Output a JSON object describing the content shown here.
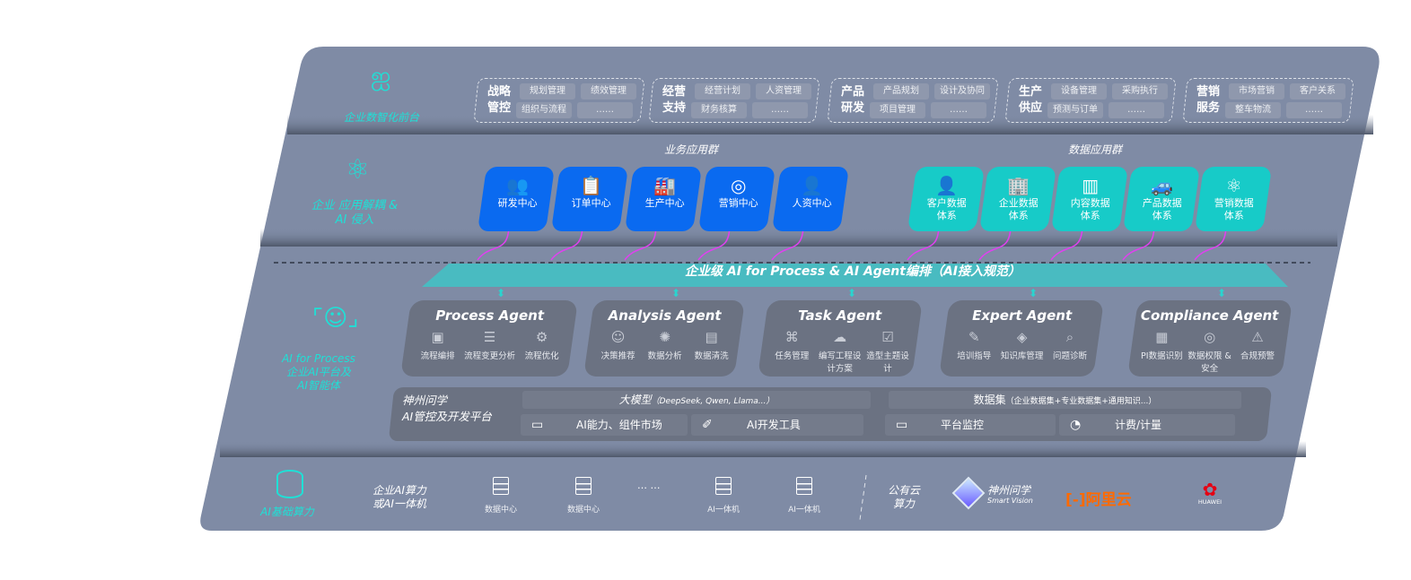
{
  "colors": {
    "panel": "#7f8ba5",
    "accent_cyan": "#1fe0d6",
    "biz_blue": "#0a6af0",
    "data_teal": "#17cbc8",
    "connector": "#e040f0",
    "aliyun": "#ff6a00",
    "huawei": "#e60012"
  },
  "front": {
    "label": "企业数智化前台",
    "icon": "brain-icon",
    "groups": [
      {
        "title": "战略管控",
        "items": [
          "规划管理",
          "绩效管理",
          "组织与流程",
          "……"
        ]
      },
      {
        "title": "经营支持",
        "items": [
          "经营计划",
          "人资管理",
          "财务核算",
          "……"
        ]
      },
      {
        "title": "产品研发",
        "items": [
          "产品规划",
          "设计及协同",
          "项目管理",
          "……"
        ]
      },
      {
        "title": "生产供应",
        "items": [
          "设备管理",
          "采购执行",
          "预测与订单",
          "……"
        ]
      },
      {
        "title": "营销服务",
        "items": [
          "市场营销",
          "客户关系",
          "整车物流",
          "……"
        ]
      }
    ]
  },
  "apps": {
    "label": "企业 应用解耦 & AI 侵入",
    "icon": "molecule-icon",
    "business_title": "业务应用群",
    "business": [
      {
        "label": "研发中心",
        "icon": "users-icon",
        "glyph": "👥"
      },
      {
        "label": "订单中心",
        "icon": "clipboard-icon",
        "glyph": "📋"
      },
      {
        "label": "生产中心",
        "icon": "factory-icon",
        "glyph": "🏭"
      },
      {
        "label": "营销中心",
        "icon": "target-icon",
        "glyph": "◎"
      },
      {
        "label": "人资中心",
        "icon": "person-icon",
        "glyph": "👤"
      }
    ],
    "data_title": "数据应用群",
    "data": [
      {
        "label": "客户数据体系",
        "icon": "user-icon",
        "glyph": "👤"
      },
      {
        "label": "企业数据体系",
        "icon": "building-icon",
        "glyph": "🏢"
      },
      {
        "label": "内容数据体系",
        "icon": "books-icon",
        "glyph": "▥"
      },
      {
        "label": "产品数据体系",
        "icon": "car-icon",
        "glyph": "🚙"
      },
      {
        "label": "营销数据体系",
        "icon": "atom-icon",
        "glyph": "⚛"
      }
    ]
  },
  "platform": {
    "label": "AI for Process 企业AI平台及 AI智能体",
    "label_line1": "AI for Process",
    "label_line2": "企业AI平台及",
    "label_line3": "AI智能体",
    "icon": "face-scan-icon",
    "banner": "企业级 AI for Process & AI Agent编排（AI接入规范）",
    "agents": [
      {
        "name": "Process Agent",
        "items": [
          {
            "label": "流程编排",
            "glyph": "▣"
          },
          {
            "label": "流程变更分析",
            "glyph": "☰"
          },
          {
            "label": "流程优化",
            "glyph": "⚙"
          }
        ]
      },
      {
        "name": "Analysis Agent",
        "items": [
          {
            "label": "决策推荐",
            "glyph": "☺"
          },
          {
            "label": "数据分析",
            "glyph": "✺"
          },
          {
            "label": "数据清洗",
            "glyph": "▤"
          }
        ]
      },
      {
        "name": "Task Agent",
        "items": [
          {
            "label": "任务管理",
            "glyph": "⌘"
          },
          {
            "label": "编写工程设计方案",
            "glyph": "☁"
          },
          {
            "label": "造型主题设计",
            "glyph": "☑"
          }
        ]
      },
      {
        "name": "Expert Agent",
        "items": [
          {
            "label": "培训指导",
            "glyph": "✎"
          },
          {
            "label": "知识库管理",
            "glyph": "◈"
          },
          {
            "label": "问题诊断",
            "glyph": "⌕"
          }
        ]
      },
      {
        "name": "Compliance Agent",
        "items": [
          {
            "label": "PI数据识别",
            "glyph": "▦"
          },
          {
            "label": "数据权限 & 安全",
            "glyph": "◎"
          },
          {
            "label": "合规预警",
            "glyph": "⚠"
          }
        ]
      }
    ],
    "dev": {
      "title_line1": "神州问学",
      "title_line2": "AI管控及开发平台",
      "model_header": "大模型",
      "model_note": "（DeepSeek, Qwen, Llama...）",
      "dataset_header": "数据集",
      "dataset_note": "（企业数据集+专业数据集+通用知识...）",
      "tools": [
        {
          "label": "AI能力、组件市场",
          "icon": "market-icon",
          "glyph": "▭"
        },
        {
          "label": "AI开发工具",
          "icon": "dev-tool-icon",
          "glyph": "✐"
        },
        {
          "label": "平台监控",
          "icon": "monitor-icon",
          "glyph": "▭"
        },
        {
          "label": "计费/计量",
          "icon": "gauge-icon",
          "glyph": "◔"
        }
      ]
    }
  },
  "compute": {
    "label": "AI基础算力",
    "icon": "database-icon",
    "enterprise_line1": "企业AI算力",
    "enterprise_line2": "或AI一体机",
    "servers": [
      "数据中心",
      "数据中心",
      "AI一体机",
      "AI一体机"
    ],
    "ellipsis": "… …",
    "public_line1": "公有云",
    "public_line2": "算力",
    "vendors": {
      "smartvision_cn": "神州问学",
      "smartvision_en": "Smart Vision",
      "aliyun": "阿里云",
      "huawei": "HUAWEI"
    }
  }
}
